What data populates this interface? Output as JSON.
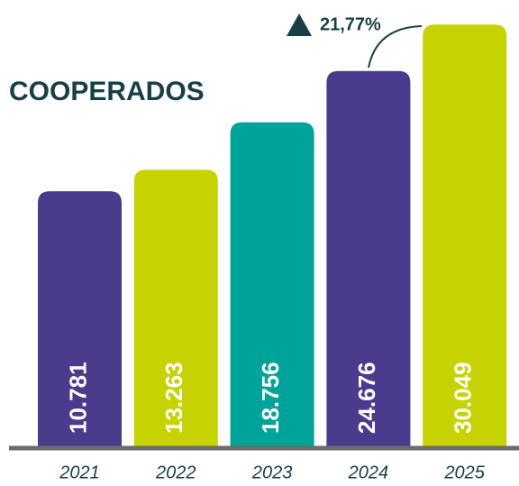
{
  "chart_data": {
    "type": "bar",
    "title": "COOPERADOS",
    "annotation": "21,77%",
    "categories": [
      "2021",
      "2022",
      "2023",
      "2024",
      "2025"
    ],
    "values": [
      10781,
      13263,
      18756,
      24676,
      30049
    ],
    "value_labels": [
      "10.781",
      "13.263",
      "18.756",
      "24.676",
      "30.049"
    ],
    "colors": [
      "#4b3b8c",
      "#c6d300",
      "#00a39a",
      "#4b3b8c",
      "#c6d300"
    ],
    "ylim": [
      -18700,
      30800
    ]
  }
}
